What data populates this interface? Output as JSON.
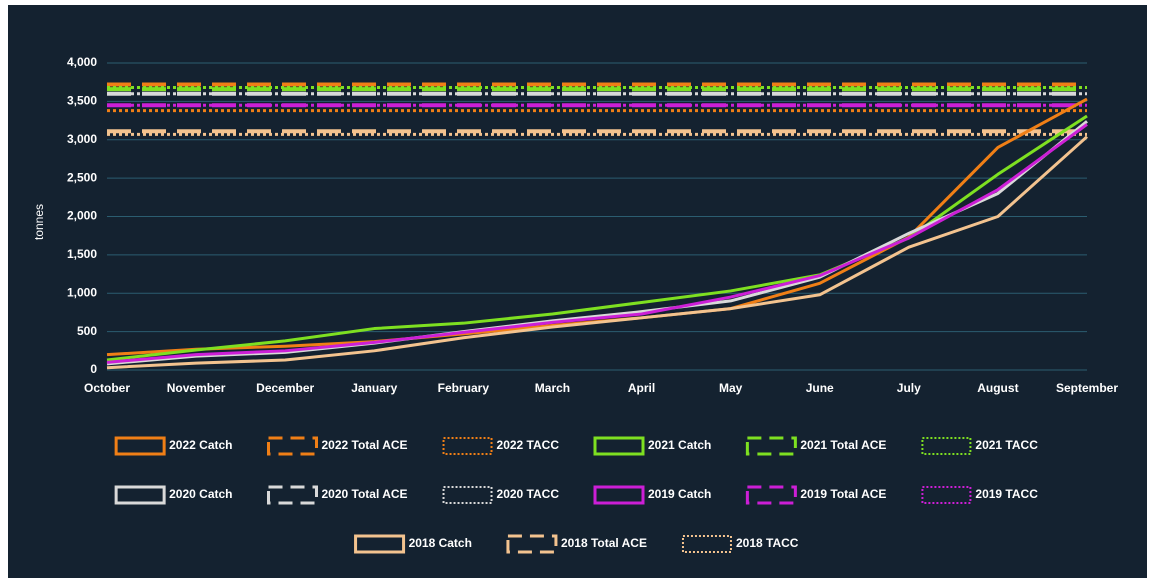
{
  "chart_data": {
    "type": "line",
    "y_label": "tonnes",
    "categories": [
      "October",
      "November",
      "December",
      "January",
      "February",
      "March",
      "April",
      "May",
      "June",
      "July",
      "August",
      "September"
    ],
    "ylim": [
      0,
      4000
    ],
    "yticks": [
      0,
      500,
      {
        "value": 1000,
        "label": "1,000"
      },
      {
        "value": 1500,
        "label": "1,500"
      },
      {
        "value": 2000,
        "label": "2,000"
      },
      {
        "value": 2500,
        "label": "2,500"
      },
      {
        "value": 3000,
        "label": "3,000"
      },
      {
        "value": 3500,
        "label": "3,500"
      },
      {
        "value": 4000,
        "label": "4,000"
      }
    ],
    "grid": true,
    "legend": "bottom",
    "series": [
      {
        "name": "2022 Catch",
        "color": "#f07f16",
        "style": "solid",
        "values": [
          200,
          270,
          310,
          370,
          470,
          580,
          680,
          800,
          1130,
          1730,
          2900,
          3530
        ]
      },
      {
        "name": "2022 Total ACE",
        "color": "#f07f16",
        "style": "dashed",
        "values": [
          3720,
          3720,
          3720,
          3720,
          3720,
          3720,
          3720,
          3720,
          3720,
          3720,
          3720,
          3720
        ]
      },
      {
        "name": "2022 TACC",
        "color": "#f07f16",
        "style": "dotted",
        "values": [
          3380,
          3380,
          3380,
          3380,
          3380,
          3380,
          3380,
          3380,
          3380,
          3380,
          3380,
          3380
        ]
      },
      {
        "name": "2021 Catch",
        "color": "#7ee021",
        "style": "solid",
        "values": [
          130,
          260,
          380,
          540,
          610,
          730,
          880,
          1030,
          1240,
          1720,
          2550,
          3310
        ]
      },
      {
        "name": "2021 Total ACE",
        "color": "#7ee021",
        "style": "dashed",
        "values": [
          3660,
          3660,
          3660,
          3660,
          3660,
          3660,
          3660,
          3660,
          3660,
          3660,
          3660,
          3660
        ]
      },
      {
        "name": "2021 TACC",
        "color": "#7ee021",
        "style": "dotted",
        "values": [
          3680,
          3680,
          3680,
          3680,
          3680,
          3680,
          3680,
          3680,
          3680,
          3680,
          3680,
          3680
        ]
      },
      {
        "name": "2020 Catch",
        "color": "#d9d9d9",
        "style": "solid",
        "values": [
          80,
          180,
          230,
          350,
          500,
          640,
          760,
          900,
          1210,
          1780,
          2300,
          3240
        ]
      },
      {
        "name": "2020 Total ACE",
        "color": "#d9d9d9",
        "style": "dashed",
        "values": [
          3600,
          3600,
          3600,
          3600,
          3600,
          3600,
          3600,
          3600,
          3600,
          3600,
          3600,
          3600
        ]
      },
      {
        "name": "2020 TACC",
        "color": "#d9d9d9",
        "style": "dotted",
        "values": [
          3600,
          3600,
          3600,
          3600,
          3600,
          3600,
          3600,
          3600,
          3600,
          3600,
          3600,
          3600
        ]
      },
      {
        "name": "2019 Catch",
        "color": "#cc1fd6",
        "style": "solid",
        "values": [
          100,
          200,
          250,
          360,
          490,
          620,
          730,
          950,
          1230,
          1720,
          2350,
          3200
        ]
      },
      {
        "name": "2019 Total ACE",
        "color": "#cc1fd6",
        "style": "dashed",
        "values": [
          3450,
          3450,
          3450,
          3450,
          3450,
          3450,
          3450,
          3450,
          3450,
          3450,
          3450,
          3450
        ]
      },
      {
        "name": "2019 TACC",
        "color": "#cc1fd6",
        "style": "dotted",
        "values": [
          3450,
          3450,
          3450,
          3450,
          3450,
          3450,
          3450,
          3450,
          3450,
          3450,
          3450,
          3450
        ]
      },
      {
        "name": "2018 Catch",
        "color": "#f3c38f",
        "style": "solid",
        "values": [
          30,
          90,
          130,
          250,
          420,
          560,
          680,
          800,
          980,
          1600,
          2000,
          3040
        ]
      },
      {
        "name": "2018 Total ACE",
        "color": "#f3c38f",
        "style": "dashed",
        "values": [
          3110,
          3110,
          3110,
          3110,
          3110,
          3110,
          3110,
          3110,
          3110,
          3110,
          3110,
          3110
        ]
      },
      {
        "name": "2018 TACC",
        "color": "#f3c38f",
        "style": "dotted",
        "values": [
          3070,
          3070,
          3070,
          3070,
          3070,
          3070,
          3070,
          3070,
          3070,
          3070,
          3070,
          3070
        ]
      }
    ]
  }
}
